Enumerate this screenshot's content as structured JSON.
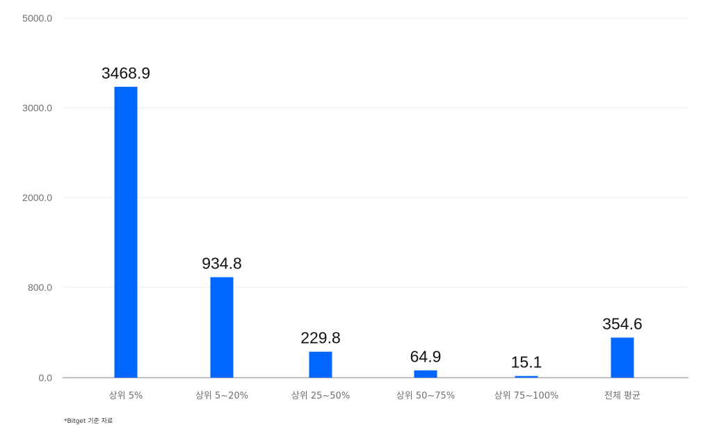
{
  "chart_data": {
    "type": "bar",
    "categories": [
      "상위 5%",
      "상위 5~20%",
      "상위 25~50%",
      "상위 50~75%",
      "상위 75~100%",
      "전체 평균"
    ],
    "values": [
      3468.9,
      934.8,
      229.8,
      64.9,
      15.1,
      354.6
    ],
    "value_labels": [
      "3468.9",
      "934.8",
      "229.8",
      "64.9",
      "15.1",
      "354.6"
    ],
    "y_ticks": [
      {
        "value": 0,
        "label": "0.0"
      },
      {
        "value": 800,
        "label": "800.0"
      },
      {
        "value": 2000,
        "label": "2000.0"
      },
      {
        "value": 3000,
        "label": "3000.0"
      },
      {
        "value": 5000,
        "label": "5000.0"
      }
    ],
    "grid": true,
    "bar_color": "#0066ff",
    "title": "",
    "xlabel": "",
    "ylabel": ""
  },
  "footnote": "*Bitget 기준 자료"
}
